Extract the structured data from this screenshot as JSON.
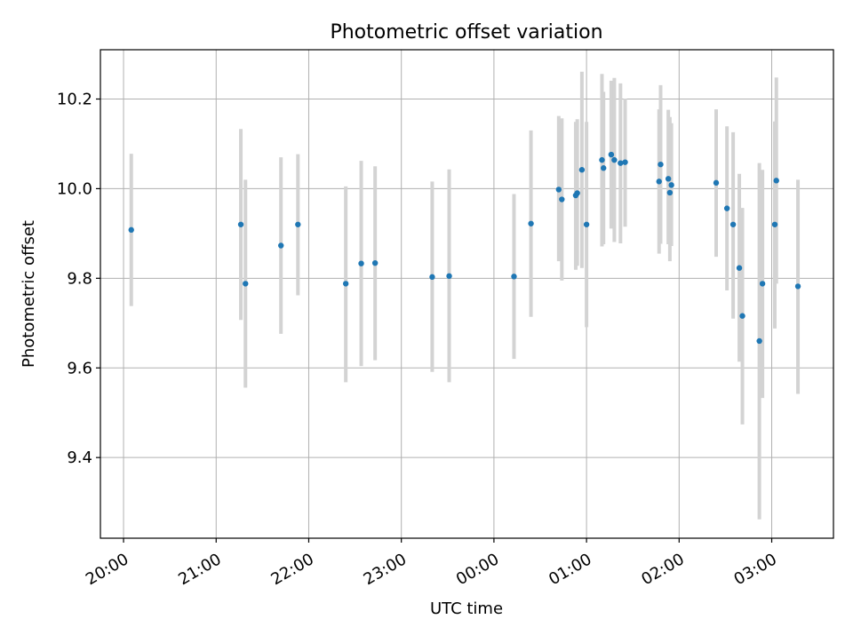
{
  "chart_data": {
    "type": "scatter",
    "title": "Photometric offset variation",
    "xlabel": "UTC time",
    "ylabel": "Photometric offset",
    "x_ticks": [
      "20:00",
      "21:00",
      "22:00",
      "23:00",
      "00:00",
      "01:00",
      "02:00",
      "03:00"
    ],
    "y_ticks": [
      "9.4",
      "9.6",
      "9.8",
      "10.0",
      "10.2"
    ],
    "x_tick_values": [
      "20:00",
      "21:00",
      "22:00",
      "23:00",
      "00:00",
      "01:00",
      "02:00",
      "03:00"
    ],
    "y_tick_values": [
      9.4,
      9.6,
      9.8,
      10.0,
      10.2
    ],
    "xlim": [
      "19:45",
      "03:40"
    ],
    "ylim": [
      9.22,
      10.31
    ],
    "grid": true,
    "x_tick_rotation_deg": 30,
    "colors": {
      "points": "#1f77b4",
      "errorbars": "#d3d3d3",
      "grid": "#b0b0b0"
    },
    "points": [
      {
        "x": "20:05",
        "y": 9.908,
        "low": 9.738,
        "high": 10.078
      },
      {
        "x": "21:16",
        "y": 9.92,
        "low": 9.707,
        "high": 10.133
      },
      {
        "x": "21:19",
        "y": 9.788,
        "low": 9.556,
        "high": 10.02
      },
      {
        "x": "21:42",
        "y": 9.873,
        "low": 9.676,
        "high": 10.07
      },
      {
        "x": "21:53",
        "y": 9.92,
        "low": 9.762,
        "high": 10.077
      },
      {
        "x": "22:24",
        "y": 9.788,
        "low": 9.568,
        "high": 10.005
      },
      {
        "x": "22:34",
        "y": 9.833,
        "low": 9.604,
        "high": 10.062
      },
      {
        "x": "22:43",
        "y": 9.834,
        "low": 9.617,
        "high": 10.05
      },
      {
        "x": "23:20",
        "y": 9.803,
        "low": 9.591,
        "high": 10.016
      },
      {
        "x": "23:31",
        "y": 9.805,
        "low": 9.568,
        "high": 10.043
      },
      {
        "x": "00:13",
        "y": 9.804,
        "low": 9.62,
        "high": 9.988
      },
      {
        "x": "00:24",
        "y": 9.922,
        "low": 9.714,
        "high": 10.13
      },
      {
        "x": "00:42",
        "y": 9.998,
        "low": 9.838,
        "high": 10.162
      },
      {
        "x": "00:44",
        "y": 9.976,
        "low": 9.795,
        "high": 10.157
      },
      {
        "x": "00:53",
        "y": 9.985,
        "low": 9.819,
        "high": 10.149
      },
      {
        "x": "00:54",
        "y": 9.99,
        "low": 9.828,
        "high": 10.155
      },
      {
        "x": "00:57",
        "y": 10.042,
        "low": 9.823,
        "high": 10.261
      },
      {
        "x": "01:00",
        "y": 9.92,
        "low": 9.691,
        "high": 10.149
      },
      {
        "x": "01:10",
        "y": 10.064,
        "low": 9.871,
        "high": 10.256
      },
      {
        "x": "01:11",
        "y": 10.046,
        "low": 9.876,
        "high": 10.216
      },
      {
        "x": "01:16",
        "y": 10.076,
        "low": 9.911,
        "high": 10.241
      },
      {
        "x": "01:18",
        "y": 10.064,
        "low": 9.881,
        "high": 10.247
      },
      {
        "x": "01:22",
        "y": 10.057,
        "low": 9.878,
        "high": 10.235
      },
      {
        "x": "01:25",
        "y": 10.059,
        "low": 9.915,
        "high": 10.201
      },
      {
        "x": "01:47",
        "y": 10.016,
        "low": 9.855,
        "high": 10.177
      },
      {
        "x": "01:48",
        "y": 10.054,
        "low": 9.877,
        "high": 10.231
      },
      {
        "x": "01:53",
        "y": 10.022,
        "low": 9.876,
        "high": 10.176
      },
      {
        "x": "01:54",
        "y": 9.991,
        "low": 9.838,
        "high": 10.16
      },
      {
        "x": "01:55",
        "y": 10.008,
        "low": 9.872,
        "high": 10.146
      },
      {
        "x": "02:24",
        "y": 10.013,
        "low": 9.848,
        "high": 10.177
      },
      {
        "x": "02:31",
        "y": 9.956,
        "low": 9.773,
        "high": 10.139
      },
      {
        "x": "02:35",
        "y": 9.92,
        "low": 9.71,
        "high": 10.126
      },
      {
        "x": "02:39",
        "y": 9.823,
        "low": 9.614,
        "high": 10.033
      },
      {
        "x": "02:41",
        "y": 9.716,
        "low": 9.474,
        "high": 9.957
      },
      {
        "x": "02:52",
        "y": 9.66,
        "low": 9.262,
        "high": 10.057
      },
      {
        "x": "02:54",
        "y": 9.788,
        "low": 9.533,
        "high": 10.042
      },
      {
        "x": "03:02",
        "y": 9.92,
        "low": 9.688,
        "high": 10.15
      },
      {
        "x": "03:03",
        "y": 10.018,
        "low": 9.788,
        "high": 10.248
      },
      {
        "x": "03:17",
        "y": 9.782,
        "low": 9.542,
        "high": 10.02
      }
    ]
  }
}
